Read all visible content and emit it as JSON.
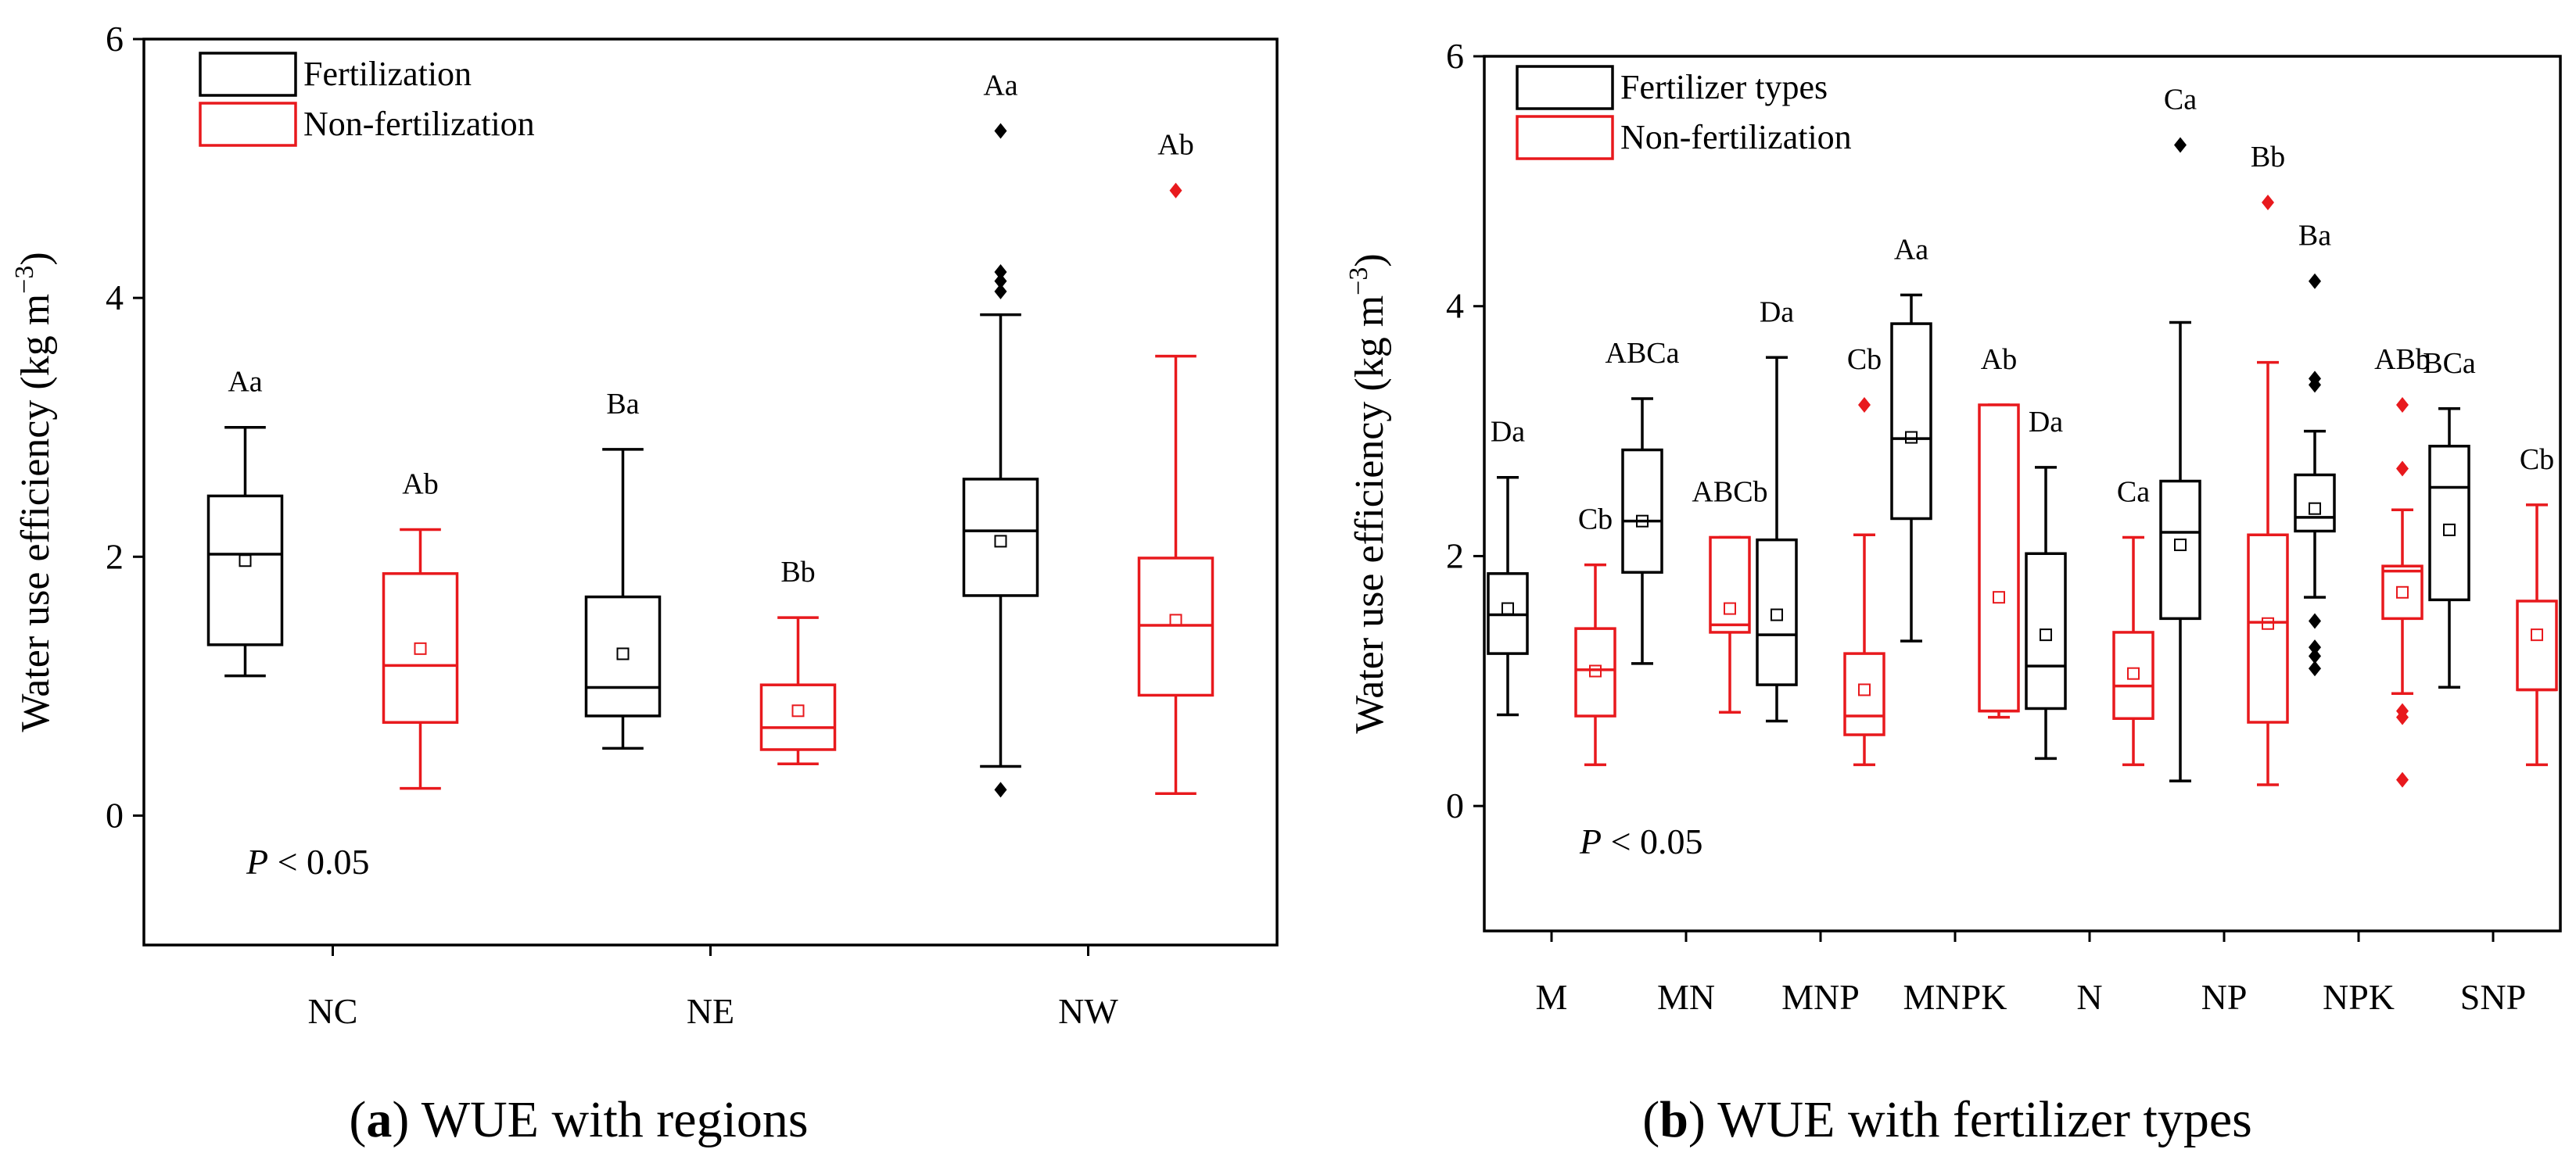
{
  "figure": {
    "caption_a": {
      "letter": "a",
      "text": "WUE with regions"
    },
    "caption_b": {
      "letter": "b",
      "text": "WUE with fertilizer types"
    }
  },
  "colors": {
    "fertilization": "#000000",
    "non_fertilization": "#e8191d",
    "axis": "#000000"
  },
  "chart_data": [
    {
      "id": "a",
      "type": "box",
      "ylabel": "Water use efficiency (kg m−3)",
      "ylim": [
        -1,
        6
      ],
      "yticks": [
        0,
        2,
        4,
        6
      ],
      "categories": [
        "NC",
        "NE",
        "NW"
      ],
      "legend": {
        "position": "top-left",
        "entries": [
          "Fertilization",
          "Non-fertilization"
        ]
      },
      "annotation": {
        "italic": "P",
        "text": " < 0.05"
      },
      "series": [
        {
          "name": "Fertilization",
          "color": "#000000",
          "boxes": [
            {
              "category": "NC",
              "whisker_low": 1.08,
              "q1": 1.32,
              "median": 2.02,
              "q3": 2.47,
              "whisker_high": 3.0,
              "mean": 1.97,
              "outliers": [],
              "label": "Aa"
            },
            {
              "category": "NE",
              "whisker_low": 0.52,
              "q1": 0.77,
              "median": 0.99,
              "q3": 1.69,
              "whisker_high": 2.83,
              "mean": 1.25,
              "outliers": [],
              "label": "Ba"
            },
            {
              "category": "NW",
              "whisker_low": 0.38,
              "q1": 1.7,
              "median": 2.2,
              "q3": 2.6,
              "whisker_high": 3.87,
              "mean": 2.12,
              "outliers": [
                0.2,
                4.05,
                4.13,
                4.2,
                5.29
              ],
              "label": "Aa"
            }
          ]
        },
        {
          "name": "Non-fertilization",
          "color": "#e8191d",
          "boxes": [
            {
              "category": "NC",
              "whisker_low": 0.21,
              "q1": 0.72,
              "median": 1.16,
              "q3": 1.87,
              "whisker_high": 2.21,
              "mean": 1.29,
              "outliers": [],
              "label": "Ab"
            },
            {
              "category": "NE",
              "whisker_low": 0.4,
              "q1": 0.51,
              "median": 0.68,
              "q3": 1.01,
              "whisker_high": 1.53,
              "mean": 0.81,
              "outliers": [],
              "label": "Bb"
            },
            {
              "category": "NW",
              "whisker_low": 0.17,
              "q1": 0.93,
              "median": 1.47,
              "q3": 1.99,
              "whisker_high": 3.55,
              "mean": 1.51,
              "outliers": [
                4.83
              ],
              "label": "Ab"
            }
          ]
        }
      ]
    },
    {
      "id": "b",
      "type": "box",
      "ylabel": "Water use efficiency (kg m−3)",
      "ylim": [
        -1,
        6
      ],
      "yticks": [
        0,
        2,
        4,
        6
      ],
      "categories": [
        "M",
        "MN",
        "MNP",
        "MNPK",
        "N",
        "NP",
        "NPK",
        "SNP"
      ],
      "legend": {
        "position": "top-left",
        "entries": [
          "Fertilizer types",
          "Non-fertilization"
        ]
      },
      "annotation": {
        "italic": "P",
        "text": " < 0.05"
      },
      "series": [
        {
          "name": "Fertilizer types",
          "color": "#000000",
          "boxes": [
            {
              "category": "M",
              "whisker_low": 0.73,
              "q1": 1.22,
              "median": 1.53,
              "q3": 1.86,
              "whisker_high": 2.63,
              "mean": 1.58,
              "outliers": [],
              "label": "Da"
            },
            {
              "category": "MN",
              "whisker_low": 1.14,
              "q1": 1.87,
              "median": 2.28,
              "q3": 2.85,
              "whisker_high": 3.26,
              "mean": 2.28,
              "outliers": [],
              "label": "ABCa"
            },
            {
              "category": "MNP",
              "whisker_low": 0.68,
              "q1": 0.97,
              "median": 1.37,
              "q3": 2.13,
              "whisker_high": 3.59,
              "mean": 1.53,
              "outliers": [],
              "label": "Da"
            },
            {
              "category": "MNPK",
              "whisker_low": 1.32,
              "q1": 2.3,
              "median": 2.94,
              "q3": 3.86,
              "whisker_high": 4.09,
              "mean": 2.95,
              "outliers": [],
              "label": "Aa"
            },
            {
              "category": "N",
              "whisker_low": 0.38,
              "q1": 0.78,
              "median": 1.12,
              "q3": 2.02,
              "whisker_high": 2.71,
              "mean": 1.37,
              "outliers": [],
              "label": "Da"
            },
            {
              "category": "NP",
              "whisker_low": 0.2,
              "q1": 1.5,
              "median": 2.19,
              "q3": 2.6,
              "whisker_high": 3.87,
              "mean": 2.09,
              "outliers": [
                5.29
              ],
              "label": "Ca"
            },
            {
              "category": "NPK",
              "whisker_low": 1.67,
              "q1": 2.2,
              "median": 2.31,
              "q3": 2.65,
              "whisker_high": 3.0,
              "mean": 2.38,
              "outliers": [
                1.1,
                1.2,
                1.27,
                1.48,
                3.37,
                3.42,
                4.2
              ],
              "label": "Ba"
            },
            {
              "category": "SNP",
              "whisker_low": 0.95,
              "q1": 1.65,
              "median": 2.55,
              "q3": 2.88,
              "whisker_high": 3.18,
              "mean": 2.21,
              "outliers": [],
              "label": "BCa"
            }
          ]
        },
        {
          "name": "Non-fertilization",
          "color": "#e8191d",
          "boxes": [
            {
              "category": "M",
              "whisker_low": 0.33,
              "q1": 0.72,
              "median": 1.09,
              "q3": 1.42,
              "whisker_high": 1.93,
              "mean": 1.08,
              "outliers": [],
              "label": "Cb"
            },
            {
              "category": "MN",
              "whisker_low": 0.75,
              "q1": 1.39,
              "median": 1.45,
              "q3": 2.15,
              "whisker_high": 2.15,
              "mean": 1.58,
              "outliers": [],
              "label": "ABCb"
            },
            {
              "category": "MNP",
              "whisker_low": 0.33,
              "q1": 0.57,
              "median": 0.72,
              "q3": 1.22,
              "whisker_high": 2.17,
              "mean": 0.93,
              "outliers": [
                3.21
              ],
              "label": "Cb"
            },
            {
              "category": "MNPK",
              "whisker_low": 0.71,
              "q1": 0.76,
              "median": 0.76,
              "q3": 3.21,
              "whisker_high": 3.21,
              "mean": 1.67,
              "outliers": [],
              "label": "Ab"
            },
            {
              "category": "N",
              "whisker_low": 0.33,
              "q1": 0.7,
              "median": 0.96,
              "q3": 1.39,
              "whisker_high": 2.15,
              "mean": 1.06,
              "outliers": [],
              "label": "Ca"
            },
            {
              "category": "NP",
              "whisker_low": 0.17,
              "q1": 0.67,
              "median": 1.47,
              "q3": 2.17,
              "whisker_high": 3.55,
              "mean": 1.46,
              "outliers": [
                4.83
              ],
              "label": "Bb"
            },
            {
              "category": "NPK",
              "whisker_low": 0.9,
              "q1": 1.5,
              "median": 1.88,
              "q3": 1.92,
              "whisker_high": 2.37,
              "mean": 1.71,
              "outliers": [
                0.21,
                0.71,
                0.76,
                2.7,
                3.21
              ],
              "label": "ABb"
            },
            {
              "category": "SNP",
              "whisker_low": 0.33,
              "q1": 0.93,
              "median": 0.93,
              "q3": 1.64,
              "whisker_high": 2.41,
              "mean": 1.37,
              "outliers": [],
              "label": "Cb"
            }
          ]
        }
      ]
    }
  ]
}
